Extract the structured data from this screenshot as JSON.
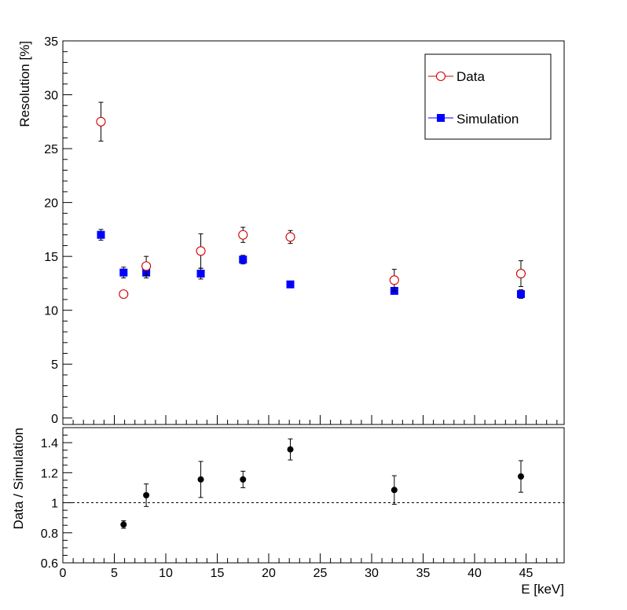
{
  "chart_data": [
    {
      "type": "scatter",
      "ylabel": "Resolution [%]",
      "xlim": [
        0,
        48.7
      ],
      "ylim": [
        -0.6,
        35
      ],
      "yticks": [
        "0",
        "5",
        "10",
        "15",
        "20",
        "25",
        "30",
        "35"
      ],
      "legend": {
        "placement": "top-right",
        "entries": [
          "Data",
          "Simulation"
        ]
      },
      "series": [
        {
          "name": "Data",
          "marker": "open-circle",
          "color": "#d00000",
          "x": [
            3.7,
            5.9,
            8.1,
            13.4,
            17.5,
            22.1,
            32.2,
            44.5
          ],
          "y": [
            27.5,
            11.5,
            14.1,
            15.5,
            17.0,
            16.8,
            12.8,
            13.4
          ],
          "yerr": [
            1.8,
            0.0,
            0.9,
            1.6,
            0.7,
            0.6,
            1.0,
            1.2
          ]
        },
        {
          "name": "Simulation",
          "marker": "filled-square",
          "color": "#0000ff",
          "x": [
            3.7,
            5.9,
            8.1,
            13.4,
            17.5,
            22.1,
            32.2,
            44.5
          ],
          "y": [
            17.0,
            13.5,
            13.5,
            13.4,
            14.7,
            12.4,
            11.8,
            11.5
          ],
          "yerr": [
            0.5,
            0.5,
            0.5,
            0.5,
            0.4,
            0.3,
            0.3,
            0.4
          ]
        }
      ]
    },
    {
      "type": "scatter",
      "xlabel": "E [keV]",
      "ylabel": "Data / Simulation",
      "xlim": [
        0,
        48.7
      ],
      "ylim": [
        0.6,
        1.5
      ],
      "xticks": [
        "0",
        "5",
        "10",
        "15",
        "20",
        "25",
        "30",
        "35",
        "40",
        "45"
      ],
      "yticks": [
        "0.6",
        "0.8",
        "1",
        "1.2",
        "1.4"
      ],
      "reference_line": 1.0,
      "series": [
        {
          "marker": "filled-circle",
          "color": "#000000",
          "x": [
            3.7,
            5.9,
            8.1,
            13.4,
            17.5,
            22.1,
            32.2,
            44.5
          ],
          "y": [
            null,
            0.855,
            1.05,
            1.155,
            1.155,
            1.355,
            1.085,
            1.175
          ],
          "yerr": [
            null,
            0.025,
            0.075,
            0.12,
            0.055,
            0.07,
            0.095,
            0.105
          ]
        }
      ]
    }
  ]
}
